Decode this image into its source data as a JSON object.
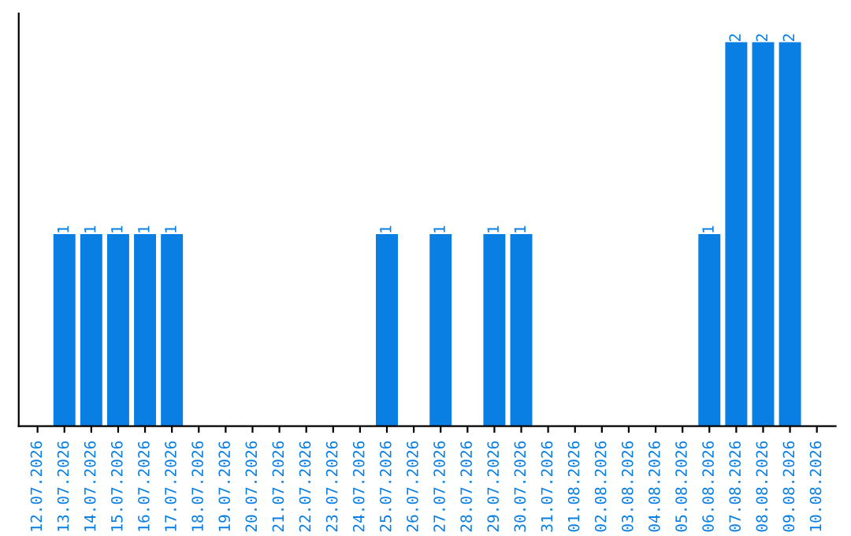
{
  "chart_data": {
    "type": "bar",
    "categories": [
      "12.07.2026",
      "13.07.2026",
      "14.07.2026",
      "15.07.2026",
      "16.07.2026",
      "17.07.2026",
      "18.07.2026",
      "19.07.2026",
      "20.07.2026",
      "21.07.2026",
      "22.07.2026",
      "23.07.2026",
      "24.07.2026",
      "25.07.2026",
      "26.07.2026",
      "27.07.2026",
      "28.07.2026",
      "29.07.2026",
      "30.07.2026",
      "31.07.2026",
      "01.08.2026",
      "02.08.2026",
      "03.08.2026",
      "04.08.2026",
      "05.08.2026",
      "06.08.2026",
      "07.08.2026",
      "08.08.2026",
      "09.08.2026",
      "10.08.2026"
    ],
    "values": [
      0,
      1,
      1,
      1,
      1,
      1,
      0,
      0,
      0,
      0,
      0,
      0,
      0,
      1,
      0,
      1,
      0,
      1,
      1,
      0,
      0,
      0,
      0,
      0,
      0,
      1,
      2,
      2,
      2,
      0
    ],
    "value_labels": [
      null,
      "1",
      "1",
      "1",
      "1",
      "1",
      null,
      null,
      null,
      null,
      null,
      null,
      null,
      "1",
      null,
      "1",
      null,
      "1",
      "1",
      null,
      null,
      null,
      null,
      null,
      null,
      "1",
      "2",
      "2",
      "2",
      null
    ],
    "color": "#0a7fe3",
    "grid": false,
    "legend": false
  }
}
